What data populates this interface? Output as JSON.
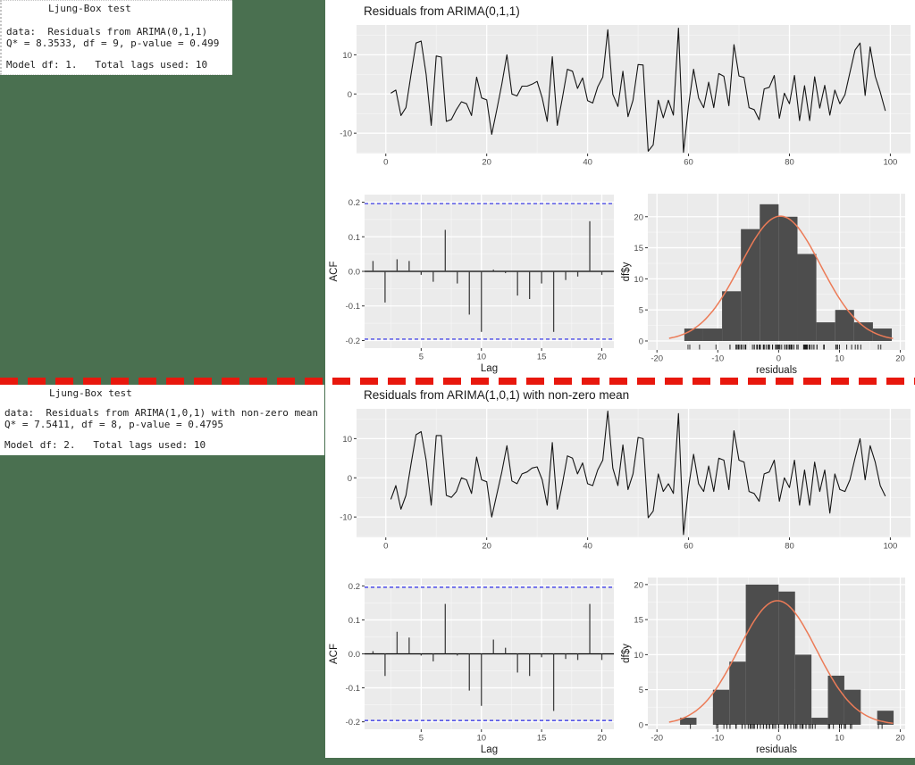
{
  "colors": {
    "background": "#FFFFFF",
    "margin_green": "#4A7050",
    "separator_red": "#E8170D",
    "panel_gray": "#EBEBEB",
    "grid_major": "#FFFFFF",
    "grid_minor": "#F6F6F6",
    "series_line": "#151515",
    "acf_bar": "#404040",
    "conf_band_blue": "#2828E6",
    "hist_fill": "#4D4D4D",
    "density_curve": "#EC7B57",
    "tick_mark": "#333333",
    "rug": "#1a1a1a"
  },
  "ljung_top": {
    "title": "Ljung-Box test",
    "data_line": "data:  Residuals from ARIMA(0,1,1)",
    "q_line": "Q* = 8.3533, df = 9, p-value = 0.499",
    "model_line": "Model df: 1.   Total lags used: 10"
  },
  "ljung_bottom": {
    "title": "Ljung-Box test",
    "data_line": "data:  Residuals from ARIMA(1,0,1) with non-zero mean",
    "q_line": "Q* = 7.5411, df = 8, p-value = 0.4795",
    "model_line": "Model df: 2.   Total lags used: 10"
  },
  "chart_data": [
    {
      "id": "ts_top",
      "type": "line",
      "title": "Residuals from ARIMA(0,1,1)",
      "x_ticks": [
        0,
        20,
        40,
        60,
        80,
        100
      ],
      "x_minor": [
        10,
        30,
        50,
        70,
        90
      ],
      "y_ticks": [
        -10,
        0,
        10
      ],
      "y_minor": [
        -15,
        -5,
        5,
        15
      ],
      "x_start": 1,
      "values": [
        0.2,
        1,
        -5.5,
        -3.5,
        5,
        13,
        13.5,
        5,
        -8,
        9.7,
        9.4,
        -7,
        -6.5,
        -4,
        -2,
        -2.5,
        -5.5,
        4.3,
        -1,
        -1.5,
        -10.3,
        -4,
        2.5,
        10,
        0,
        -0.5,
        2,
        2,
        2.5,
        3.2,
        -1,
        -7,
        9.5,
        -8,
        -1,
        6.3,
        5.8,
        1.4,
        4.1,
        -1.7,
        -2.3,
        1.8,
        4.3,
        16.4,
        -0.1,
        -3.2,
        5.8,
        -5.8,
        -1.6,
        7.5,
        7.4,
        -14.6,
        -13,
        -1.6,
        -6.1,
        -1.6,
        -5.4,
        16.8,
        -14.9,
        -3.1,
        6.3,
        -1,
        -3.5,
        3,
        -3.5,
        5.2,
        4.5,
        -3,
        12.6,
        4.6,
        4.2,
        -3.5,
        -4,
        -6.6,
        1.3,
        1.7,
        4.7,
        -6.2,
        0.2,
        -2.5,
        4.7,
        -6.8,
        2.1,
        -6.8,
        4.4,
        -3.6,
        2.2,
        -5.4,
        1,
        -2.5,
        -0.2,
        5.5,
        11.2,
        13,
        -0.4,
        12,
        4.5,
        0.5,
        -4.3
      ]
    },
    {
      "id": "acf_top",
      "type": "acf",
      "xlabel": "Lag",
      "ylabel": "ACF",
      "x_ticks": [
        5,
        10,
        15,
        20
      ],
      "x_minor": [
        2.5,
        7.5,
        12.5,
        17.5
      ],
      "y_ticks": [
        0.2,
        0.1,
        0,
        -0.1,
        -0.2
      ],
      "y_tick_labels": [
        "0.2",
        "0.1",
        "0.0",
        "-0.1",
        "-0.2"
      ],
      "y_minor": [
        0.15,
        0.05,
        -0.05,
        -0.15
      ],
      "conf_level": 0.196,
      "values": [
        0.03,
        -0.09,
        0.035,
        0.03,
        -0.01,
        -0.03,
        0.12,
        -0.035,
        -0.125,
        -0.175,
        0.005,
        -0.005,
        -0.07,
        -0.08,
        -0.035,
        -0.175,
        -0.025,
        -0.015,
        0.145,
        -0.01
      ]
    },
    {
      "id": "hist_top",
      "type": "histogram",
      "xlabel": "residuals",
      "ylabel": "df$y",
      "x_ticks": [
        -20,
        -10,
        0,
        10,
        20
      ],
      "x_minor": [
        -15,
        -5,
        5,
        15
      ],
      "y_ticks": [
        0,
        5,
        10,
        15,
        20
      ],
      "y_minor": [
        2.5,
        7.5,
        12.5,
        17.5
      ],
      "bin_start": -15.5,
      "bin_width": 3.1,
      "counts": [
        2,
        2,
        8,
        18,
        22,
        20,
        14,
        3,
        5,
        3,
        2
      ],
      "curve": {
        "peak": 20.1,
        "mean": 0.3,
        "sd": 6.6
      },
      "rug_from": "ts_top"
    },
    {
      "id": "ts_bot",
      "type": "line",
      "title": "Residuals from ARIMA(1,0,1) with non-zero mean",
      "x_ticks": [
        0,
        20,
        40,
        60,
        80,
        100
      ],
      "x_minor": [
        10,
        30,
        50,
        70,
        90
      ],
      "y_ticks": [
        -10,
        0,
        10
      ],
      "y_minor": [
        -15,
        -5,
        5,
        15
      ],
      "x_start": 1,
      "values": [
        -5.5,
        -2,
        -8,
        -4.5,
        3.5,
        11,
        11.8,
        4.5,
        -7,
        10.8,
        10.8,
        -4.5,
        -5,
        -3.5,
        0,
        -0.5,
        -4,
        5.3,
        -0.5,
        -1,
        -10,
        -4.2,
        1.5,
        8.2,
        -0.8,
        -1.5,
        1,
        1.5,
        2.5,
        2.8,
        -0.5,
        -7,
        9,
        -8,
        -1.5,
        5.6,
        5,
        1,
        3.8,
        -1.5,
        -2,
        2,
        4.5,
        17,
        2.5,
        -2,
        8.4,
        -3,
        1,
        10.3,
        10,
        -10.2,
        -8.5,
        1,
        -3.5,
        -1.5,
        -4,
        16.4,
        -14.5,
        -2.5,
        6,
        -1.5,
        -3.5,
        3,
        -3.5,
        5,
        4.5,
        -3,
        12,
        4.5,
        4,
        -3.5,
        -4,
        -6,
        1,
        1.5,
        4.5,
        -6,
        0,
        -2.5,
        4.5,
        -7,
        2,
        -7,
        4,
        -3.5,
        2,
        -9,
        1,
        -3,
        -3.5,
        -0.5,
        5,
        10,
        -0.5,
        8.2,
        4,
        -2,
        -4.7
      ]
    },
    {
      "id": "acf_bot",
      "type": "acf",
      "xlabel": "Lag",
      "ylabel": "ACF",
      "x_ticks": [
        5,
        10,
        15,
        20
      ],
      "x_minor": [
        2.5,
        7.5,
        12.5,
        17.5
      ],
      "y_ticks": [
        0.2,
        0.1,
        0,
        -0.1,
        -0.2
      ],
      "y_tick_labels": [
        "0.2",
        "0.1",
        "0.0",
        "-0.1",
        "-0.2"
      ],
      "y_minor": [
        0.15,
        0.05,
        -0.05,
        -0.15
      ],
      "conf_level": 0.196,
      "values": [
        0.008,
        -0.065,
        0.065,
        0.048,
        -0.005,
        -0.022,
        0.147,
        -0.005,
        -0.108,
        -0.153,
        0.042,
        0.018,
        -0.055,
        -0.065,
        -0.01,
        -0.168,
        -0.015,
        -0.018,
        0.147,
        -0.018
      ]
    },
    {
      "id": "hist_bot",
      "type": "histogram",
      "xlabel": "residuals",
      "ylabel": "df$y",
      "x_ticks": [
        -20,
        -10,
        0,
        10,
        20
      ],
      "x_minor": [
        -15,
        -5,
        5,
        15
      ],
      "y_ticks": [
        0,
        5,
        10,
        15,
        20
      ],
      "y_minor": [
        2.5,
        7.5,
        12.5,
        17.5
      ],
      "bin_start": -16.2,
      "bin_width": 2.7,
      "counts": [
        1,
        0,
        5,
        9,
        20,
        20,
        19,
        10,
        1,
        7,
        5,
        0,
        2
      ],
      "curve": {
        "peak": 17.7,
        "mean": -0.2,
        "sd": 6.4
      },
      "rug_from": "ts_bot"
    }
  ]
}
